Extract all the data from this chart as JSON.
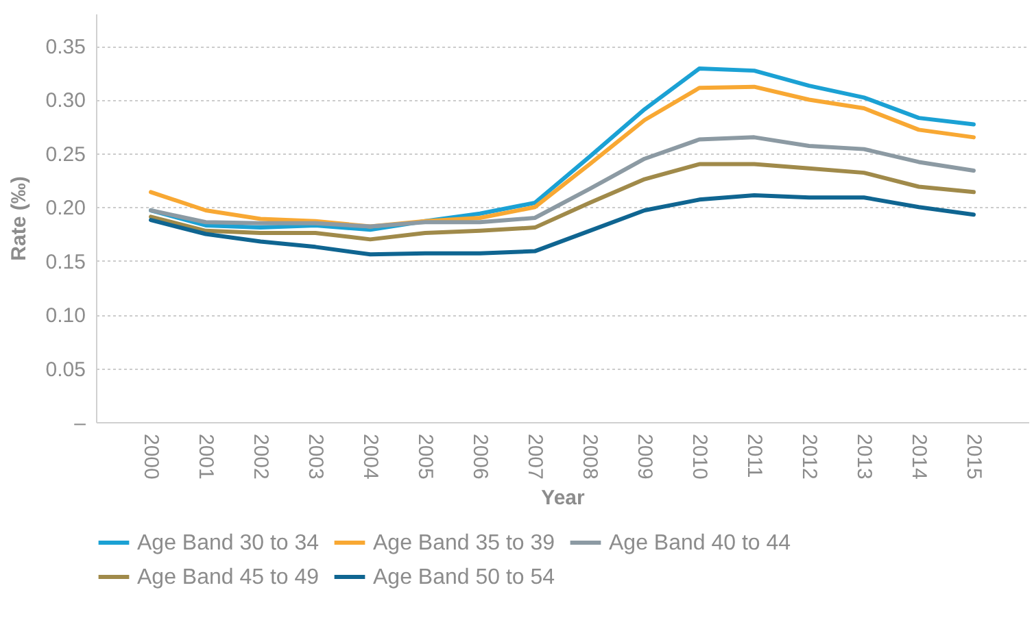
{
  "chart_data": {
    "type": "line",
    "xlabel": "Year",
    "ylabel": "Rate (‰)",
    "categories": [
      "2000",
      "2001",
      "2002",
      "2003",
      "2004",
      "2005",
      "2006",
      "2007",
      "2008",
      "2009",
      "2010",
      "2011",
      "2012",
      "2013",
      "2014",
      "2015"
    ],
    "ylim": [
      0,
      0.38
    ],
    "yticks": [
      {
        "value": 0,
        "label": "–"
      },
      {
        "value": 0.05,
        "label": "0.05"
      },
      {
        "value": 0.1,
        "label": "0.10"
      },
      {
        "value": 0.15,
        "label": "0.15"
      },
      {
        "value": 0.2,
        "label": "0.20"
      },
      {
        "value": 0.25,
        "label": "0.25"
      },
      {
        "value": 0.3,
        "label": "0.30"
      },
      {
        "value": 0.35,
        "label": "0.35"
      }
    ],
    "grid": "y",
    "legend": "bottom",
    "line_style": "solid",
    "series": [
      {
        "name": "Age Band 30 to 34",
        "color": "#1ba1d4",
        "values": [
          0.197,
          0.183,
          0.181,
          0.183,
          0.179,
          0.187,
          0.194,
          0.204,
          0.247,
          0.291,
          0.329,
          0.327,
          0.313,
          0.302,
          0.283,
          0.277
        ]
      },
      {
        "name": "Age Band 35 to 39",
        "color": "#f8a833",
        "values": [
          0.214,
          0.197,
          0.189,
          0.187,
          0.182,
          0.187,
          0.19,
          0.2,
          0.24,
          0.281,
          0.311,
          0.312,
          0.3,
          0.292,
          0.272,
          0.265
        ]
      },
      {
        "name": "Age Band 40 to 44",
        "color": "#8c9aa3",
        "values": [
          0.197,
          0.186,
          0.185,
          0.185,
          0.182,
          0.186,
          0.186,
          0.19,
          0.217,
          0.245,
          0.263,
          0.265,
          0.257,
          0.254,
          0.242,
          0.234
        ]
      },
      {
        "name": "Age Band 45 to 49",
        "color": "#a08a4a",
        "values": [
          0.191,
          0.178,
          0.176,
          0.176,
          0.17,
          0.176,
          0.178,
          0.181,
          0.204,
          0.226,
          0.24,
          0.24,
          0.236,
          0.232,
          0.219,
          0.214
        ]
      },
      {
        "name": "Age Band 50 to 54",
        "color": "#0f6591",
        "values": [
          0.188,
          0.175,
          0.168,
          0.163,
          0.156,
          0.157,
          0.157,
          0.159,
          0.178,
          0.197,
          0.207,
          0.211,
          0.209,
          0.209,
          0.2,
          0.193
        ]
      }
    ]
  }
}
